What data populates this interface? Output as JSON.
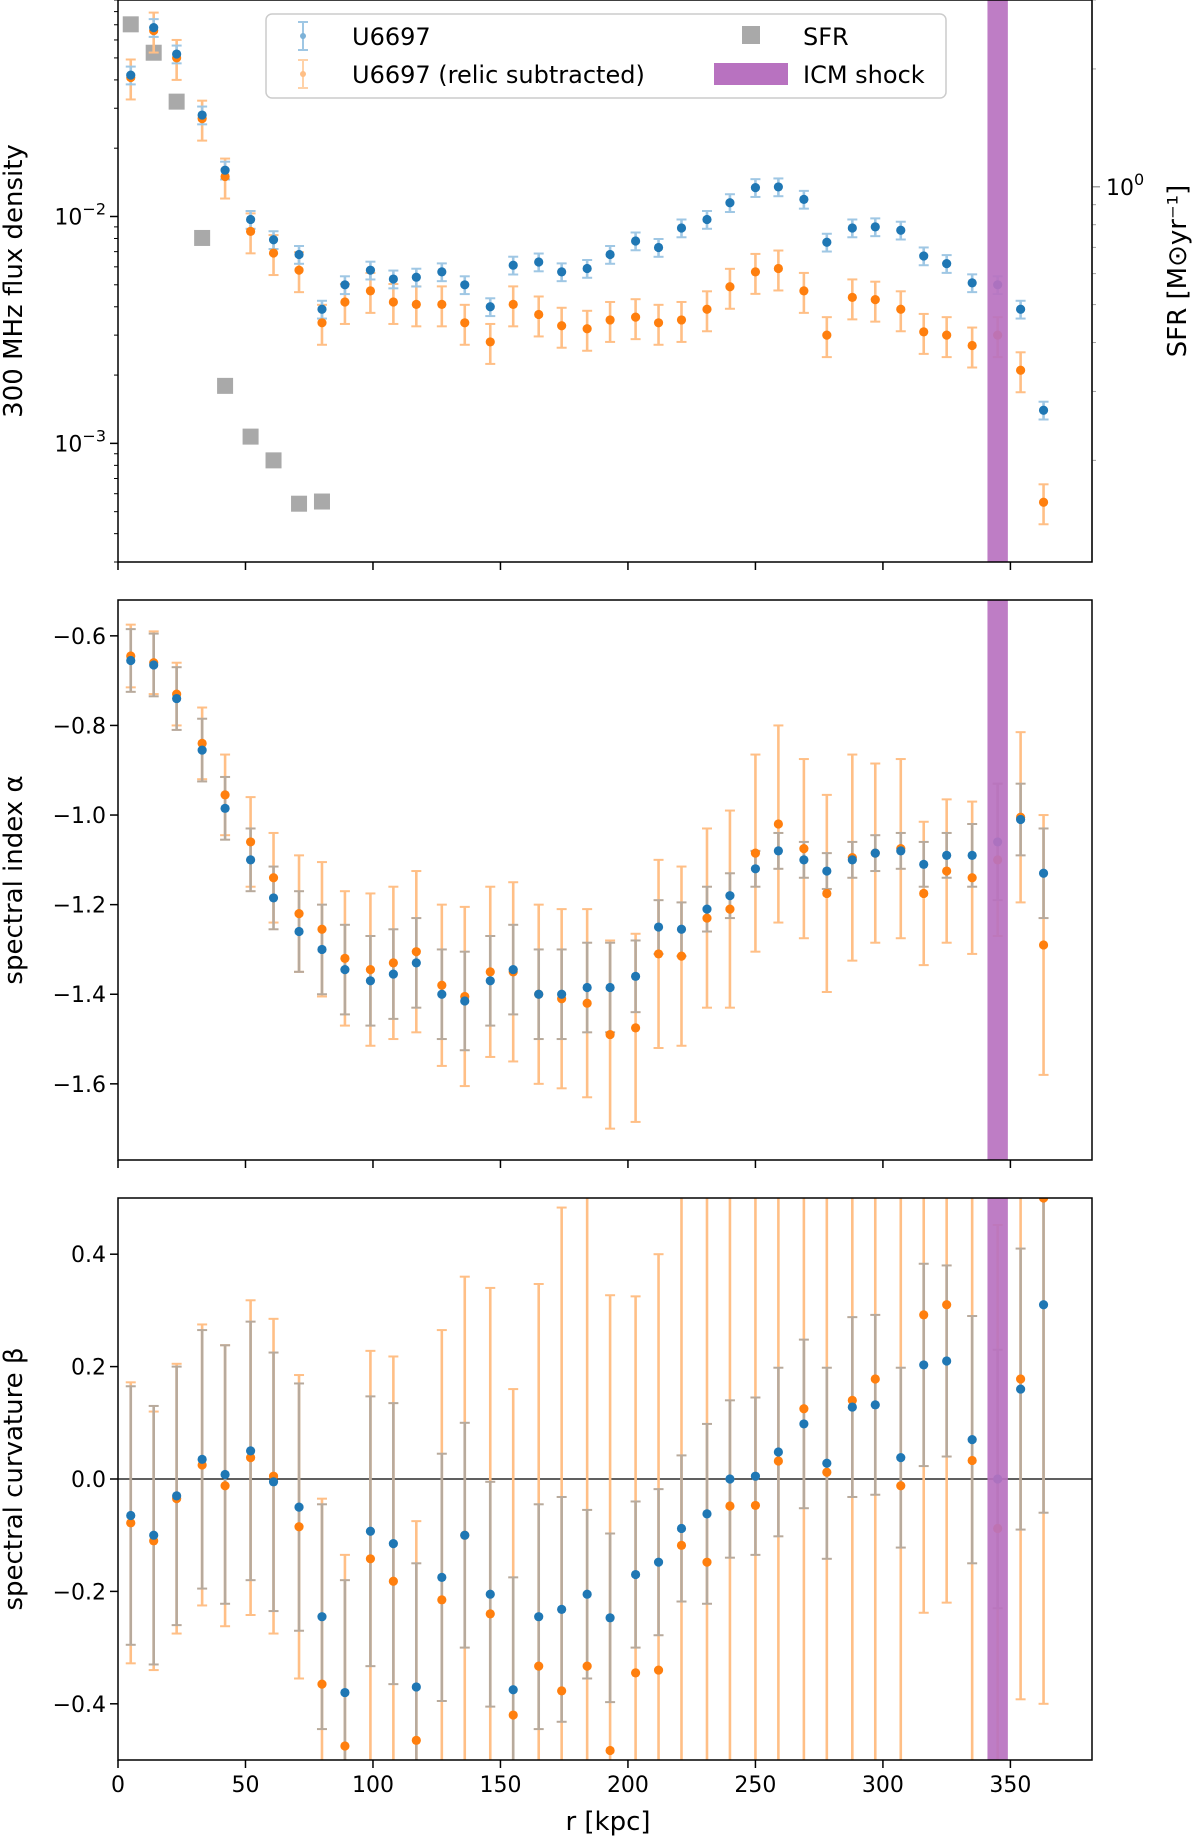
{
  "figure": {
    "xlabel": "r [kpc]",
    "x_ticks": [
      0,
      50,
      100,
      150,
      200,
      250,
      300,
      350
    ],
    "xlim": [
      0,
      382
    ],
    "shock_band": [
      341,
      349
    ],
    "colors": {
      "blue": "#1f77b4",
      "orange": "#ff7f0e",
      "orange_err": "#ffbf86",
      "blue_err": "#9fc7e4",
      "grey_err": "#b8aa9c",
      "sfr": "#a9a9a9",
      "shock": "#b872c0",
      "axis": "#000000"
    }
  },
  "legend": {
    "u6697": "U6697",
    "relic": "U6697 (relic subtracted)",
    "sfr": "SFR",
    "shock": "ICM shock"
  },
  "chart_data": [
    {
      "id": "flux",
      "type": "scatter",
      "ylabel": "300 MHz flux density",
      "yscale": "log",
      "ylim": [
        0.0003,
        0.09
      ],
      "y_ticks": [
        {
          "value": 0.01,
          "base": "10",
          "exp": "−2"
        },
        {
          "value": 0.001,
          "base": "10",
          "exp": "−3"
        }
      ],
      "secondary_axis": {
        "label": "SFR [M⊙yr⁻¹]",
        "scale": "log",
        "ylim": [
          0.11,
          3.0
        ],
        "tick": {
          "value": 1.0,
          "base": "10",
          "exp": "0"
        },
        "sfr_points": {
          "x": [
            5,
            14,
            23,
            33,
            42,
            52,
            61,
            71,
            80
          ],
          "y": [
            2.6,
            2.2,
            1.65,
            0.74,
            0.31,
            0.23,
            0.2,
            0.155,
            0.157
          ]
        }
      },
      "x": [
        5,
        14,
        23,
        33,
        42,
        52,
        61,
        71,
        80,
        89,
        99,
        108,
        117,
        127,
        136,
        146,
        155,
        165,
        174,
        184,
        193,
        203,
        212,
        221,
        231,
        240,
        250,
        259,
        269,
        278,
        288,
        297,
        307,
        316,
        325,
        335,
        345,
        354,
        363
      ],
      "series": [
        {
          "name": "U6697",
          "values": [
            0.042,
            0.068,
            0.052,
            0.028,
            0.016,
            0.0097,
            0.0079,
            0.0068,
            0.0039,
            0.005,
            0.0058,
            0.0053,
            0.0054,
            0.0057,
            0.005,
            0.004,
            0.0061,
            0.0063,
            0.0057,
            0.0059,
            0.0068,
            0.0078,
            0.0073,
            0.0089,
            0.0097,
            0.0115,
            0.0134,
            0.0135,
            0.0119,
            0.0077,
            0.0089,
            0.009,
            0.0087,
            0.0067,
            0.0062,
            0.0051,
            0.005,
            0.0039,
            0.0014
          ],
          "rel_err": 0.09
        },
        {
          "name": "U6697 (relic subtracted)",
          "values": [
            0.041,
            0.066,
            0.05,
            0.027,
            0.015,
            0.0086,
            0.0069,
            0.0058,
            0.0034,
            0.0042,
            0.0047,
            0.0042,
            0.0041,
            0.0041,
            0.0034,
            0.0028,
            0.0041,
            0.0037,
            0.0033,
            0.0032,
            0.0035,
            0.0036,
            0.0034,
            0.0035,
            0.0039,
            0.0049,
            0.0057,
            0.0059,
            0.0047,
            0.003,
            0.0044,
            0.0043,
            0.0039,
            0.0031,
            0.003,
            0.0027,
            0.003,
            0.0021,
            0.00055
          ],
          "rel_err": 0.2
        }
      ]
    },
    {
      "id": "alpha",
      "type": "scatter",
      "ylabel": "spectral index α",
      "yscale": "linear",
      "ylim": [
        -1.77,
        -0.52
      ],
      "y_ticks": [
        -0.6,
        -0.8,
        -1.0,
        -1.2,
        -1.4,
        -1.6
      ],
      "y_tick_labels": [
        "−0.6",
        "−0.8",
        "−1.0",
        "−1.2",
        "−1.4",
        "−1.6"
      ],
      "x": [
        5,
        14,
        23,
        33,
        42,
        52,
        61,
        71,
        80,
        89,
        99,
        108,
        117,
        127,
        136,
        146,
        155,
        165,
        174,
        184,
        193,
        203,
        212,
        221,
        231,
        240,
        250,
        259,
        269,
        278,
        288,
        297,
        307,
        316,
        325,
        335,
        345,
        354,
        363
      ],
      "series": [
        {
          "name": "U6697",
          "values": [
            -0.655,
            -0.665,
            -0.74,
            -0.855,
            -0.985,
            -1.1,
            -1.185,
            -1.26,
            -1.3,
            -1.345,
            -1.37,
            -1.355,
            -1.33,
            -1.4,
            -1.415,
            -1.37,
            -1.345,
            -1.4,
            -1.4,
            -1.385,
            -1.385,
            -1.36,
            -1.25,
            -1.255,
            -1.21,
            -1.18,
            -1.12,
            -1.08,
            -1.1,
            -1.125,
            -1.1,
            -1.085,
            -1.08,
            -1.11,
            -1.09,
            -1.09,
            -1.06,
            -1.01,
            -1.13
          ],
          "errors": [
            0.07,
            0.07,
            0.07,
            0.07,
            0.07,
            0.07,
            0.07,
            0.09,
            0.1,
            0.1,
            0.1,
            0.1,
            0.1,
            0.1,
            0.11,
            0.1,
            0.1,
            0.1,
            0.1,
            0.1,
            0.1,
            0.08,
            0.06,
            0.06,
            0.05,
            0.05,
            0.04,
            0.04,
            0.04,
            0.04,
            0.04,
            0.04,
            0.04,
            0.05,
            0.05,
            0.07,
            0.13,
            0.08,
            0.1
          ]
        },
        {
          "name": "U6697 (relic subtracted)",
          "values": [
            -0.645,
            -0.66,
            -0.73,
            -0.84,
            -0.955,
            -1.06,
            -1.14,
            -1.22,
            -1.255,
            -1.32,
            -1.345,
            -1.33,
            -1.305,
            -1.38,
            -1.405,
            -1.35,
            -1.35,
            -1.4,
            -1.41,
            -1.42,
            -1.49,
            -1.475,
            -1.31,
            -1.315,
            -1.23,
            -1.21,
            -1.085,
            -1.02,
            -1.075,
            -1.175,
            -1.095,
            -1.085,
            -1.075,
            -1.175,
            -1.125,
            -1.14,
            -1.1,
            -1.005,
            -1.29
          ],
          "errors": [
            0.07,
            0.07,
            0.07,
            0.08,
            0.09,
            0.1,
            0.1,
            0.13,
            0.15,
            0.15,
            0.17,
            0.17,
            0.18,
            0.18,
            0.2,
            0.19,
            0.2,
            0.2,
            0.2,
            0.21,
            0.21,
            0.21,
            0.21,
            0.2,
            0.2,
            0.22,
            0.22,
            0.22,
            0.2,
            0.22,
            0.23,
            0.2,
            0.2,
            0.16,
            0.16,
            0.17,
            0.17,
            0.19,
            0.29
          ]
        }
      ]
    },
    {
      "id": "beta",
      "type": "scatter",
      "ylabel": "spectral curvature β",
      "yscale": "linear",
      "ylim": [
        -0.5,
        0.5
      ],
      "y_ticks": [
        0.4,
        0.2,
        0.0,
        -0.2,
        -0.4
      ],
      "y_tick_labels": [
        "0.4",
        "0.2",
        "0.0",
        "−0.2",
        "−0.4"
      ],
      "hline": 0,
      "x": [
        5,
        14,
        23,
        33,
        42,
        52,
        61,
        71,
        80,
        89,
        99,
        108,
        117,
        127,
        136,
        146,
        155,
        165,
        174,
        184,
        193,
        203,
        212,
        221,
        231,
        240,
        250,
        259,
        269,
        278,
        288,
        297,
        307,
        316,
        325,
        335,
        345,
        354,
        363
      ],
      "series": [
        {
          "name": "U6697",
          "values": [
            -0.065,
            -0.1,
            -0.03,
            0.035,
            0.008,
            0.05,
            -0.005,
            -0.05,
            -0.245,
            -0.38,
            -0.093,
            -0.115,
            -0.37,
            -0.175,
            -0.1,
            -0.205,
            -0.375,
            -0.245,
            -0.232,
            -0.205,
            -0.247,
            -0.17,
            -0.148,
            -0.088,
            -0.062,
            0.0,
            0.005,
            0.048,
            0.098,
            0.028,
            0.128,
            0.132,
            0.038,
            0.203,
            0.21,
            0.07,
            0.0,
            0.16,
            0.31
          ],
          "errors": [
            0.23,
            0.23,
            0.23,
            0.23,
            0.23,
            0.23,
            0.23,
            0.22,
            0.2,
            0.2,
            0.24,
            0.25,
            0.22,
            0.22,
            0.2,
            0.2,
            0.2,
            0.2,
            0.2,
            0.15,
            0.15,
            0.13,
            0.13,
            0.13,
            0.16,
            0.14,
            0.14,
            0.15,
            0.15,
            0.17,
            0.16,
            0.16,
            0.16,
            0.18,
            0.17,
            0.22,
            0.23,
            0.25,
            0.37
          ]
        },
        {
          "name": "U6697 (relic subtracted)",
          "values": [
            -0.078,
            -0.11,
            -0.035,
            0.025,
            -0.012,
            0.038,
            0.005,
            -0.085,
            -0.365,
            -0.475,
            -0.142,
            -0.182,
            -0.465,
            -0.215,
            -0.1,
            -0.24,
            -0.42,
            -0.333,
            -0.377,
            -0.333,
            -0.483,
            -0.345,
            -0.34,
            -0.118,
            -0.148,
            -0.048,
            -0.047,
            0.032,
            0.125,
            0.012,
            0.14,
            0.178,
            -0.012,
            0.292,
            0.31,
            0.033,
            -0.088,
            0.178,
            0.5
          ],
          "errors": [
            0.25,
            0.23,
            0.24,
            0.25,
            0.25,
            0.28,
            0.28,
            0.27,
            0.33,
            0.34,
            0.37,
            0.4,
            0.39,
            0.48,
            0.46,
            0.58,
            0.58,
            0.68,
            0.86,
            0.85,
            0.81,
            0.67,
            0.74,
            0.84,
            0.9,
            0.9,
            0.9,
            0.9,
            0.9,
            0.9,
            0.9,
            0.9,
            0.9,
            0.53,
            0.53,
            0.67,
            0.54,
            0.57,
            0.9
          ]
        }
      ]
    }
  ]
}
